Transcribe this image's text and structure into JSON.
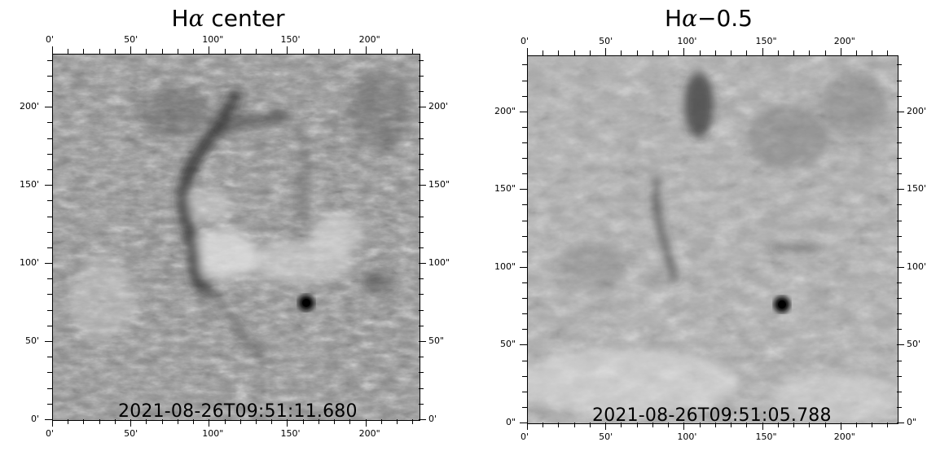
{
  "panels": [
    {
      "title_prefix": "H",
      "title_alpha": "α",
      "title_suffix": " center",
      "timestamp": "2021-08-26T09:51:11.680",
      "x_ticks": [
        "0'",
        "50'",
        "100\"",
        "150'",
        "200\""
      ],
      "y_ticks_left": [
        "0'",
        "50'",
        "100'",
        "150'",
        "200'"
      ],
      "y_ticks_right": [
        "0'",
        "50\"",
        "100\"",
        "150\"",
        "200'"
      ]
    },
    {
      "title_prefix": "H",
      "title_alpha": "α",
      "title_suffix": "−0.5",
      "timestamp": "2021-08-26T09:51:05.788",
      "x_ticks": [
        "0'",
        "50'",
        "100'",
        "150\"",
        "200\""
      ],
      "y_ticks_left": [
        "0\"",
        "50\"",
        "100\"",
        "150\"",
        "200\""
      ],
      "y_ticks_right": [
        "0\"",
        "50'",
        "100'",
        "150'",
        "200'"
      ]
    }
  ]
}
